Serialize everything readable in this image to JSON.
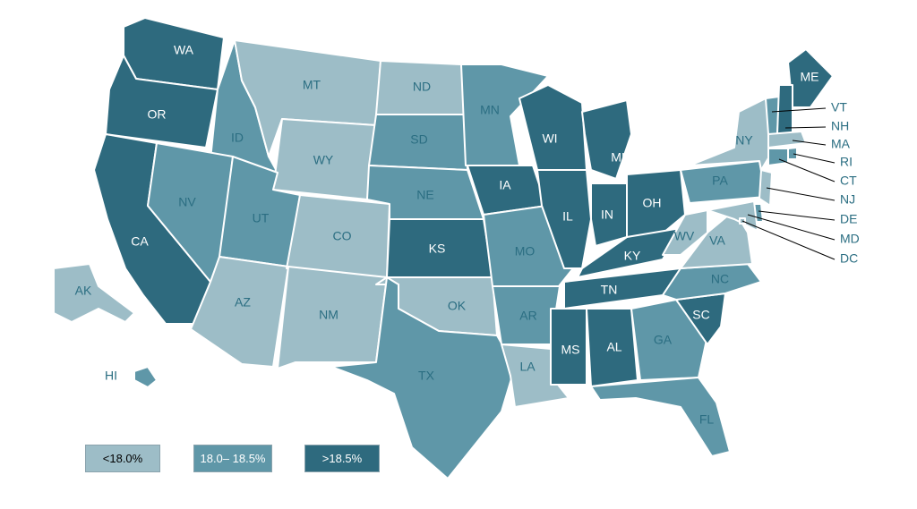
{
  "colors": {
    "low": "#9dbdc7",
    "mid": "#5f97a8",
    "high": "#2e6a7e",
    "border": "#ffffff",
    "label_dark": "#2b6e82",
    "label_light": "#ffffff"
  },
  "legend": [
    {
      "label": "<18.0%",
      "category": "low"
    },
    {
      "label": "18.0– 18.5%",
      "category": "mid"
    },
    {
      "label": ">18.5%",
      "category": "high"
    }
  ],
  "states": [
    {
      "abbr": "WA",
      "category": "high"
    },
    {
      "abbr": "OR",
      "category": "high"
    },
    {
      "abbr": "CA",
      "category": "high"
    },
    {
      "abbr": "ID",
      "category": "mid"
    },
    {
      "abbr": "NV",
      "category": "mid"
    },
    {
      "abbr": "MT",
      "category": "low"
    },
    {
      "abbr": "WY",
      "category": "low"
    },
    {
      "abbr": "UT",
      "category": "mid"
    },
    {
      "abbr": "AZ",
      "category": "low"
    },
    {
      "abbr": "CO",
      "category": "low"
    },
    {
      "abbr": "NM",
      "category": "low"
    },
    {
      "abbr": "ND",
      "category": "low"
    },
    {
      "abbr": "SD",
      "category": "mid"
    },
    {
      "abbr": "NE",
      "category": "mid"
    },
    {
      "abbr": "KS",
      "category": "high"
    },
    {
      "abbr": "OK",
      "category": "low"
    },
    {
      "abbr": "TX",
      "category": "mid"
    },
    {
      "abbr": "MN",
      "category": "mid"
    },
    {
      "abbr": "IA",
      "category": "high"
    },
    {
      "abbr": "MO",
      "category": "mid"
    },
    {
      "abbr": "AR",
      "category": "mid"
    },
    {
      "abbr": "LA",
      "category": "low"
    },
    {
      "abbr": "WI",
      "category": "high"
    },
    {
      "abbr": "IL",
      "category": "high"
    },
    {
      "abbr": "MI",
      "category": "high"
    },
    {
      "abbr": "IN",
      "category": "high"
    },
    {
      "abbr": "OH",
      "category": "high"
    },
    {
      "abbr": "KY",
      "category": "high"
    },
    {
      "abbr": "TN",
      "category": "high"
    },
    {
      "abbr": "MS",
      "category": "high"
    },
    {
      "abbr": "AL",
      "category": "high"
    },
    {
      "abbr": "GA",
      "category": "mid"
    },
    {
      "abbr": "FL",
      "category": "mid"
    },
    {
      "abbr": "SC",
      "category": "high"
    },
    {
      "abbr": "NC",
      "category": "mid"
    },
    {
      "abbr": "VA",
      "category": "low"
    },
    {
      "abbr": "WV",
      "category": "low"
    },
    {
      "abbr": "PA",
      "category": "mid"
    },
    {
      "abbr": "NY",
      "category": "low"
    },
    {
      "abbr": "ME",
      "category": "high"
    },
    {
      "abbr": "AK",
      "category": "low"
    },
    {
      "abbr": "HI",
      "category": "mid"
    },
    {
      "abbr": "VT",
      "category": "mid"
    },
    {
      "abbr": "NH",
      "category": "high"
    },
    {
      "abbr": "MA",
      "category": "low"
    },
    {
      "abbr": "RI",
      "category": "mid"
    },
    {
      "abbr": "CT",
      "category": "mid"
    },
    {
      "abbr": "NJ",
      "category": "low"
    },
    {
      "abbr": "DE",
      "category": "mid"
    },
    {
      "abbr": "MD",
      "category": "low"
    },
    {
      "abbr": "DC",
      "category": "low"
    }
  ]
}
